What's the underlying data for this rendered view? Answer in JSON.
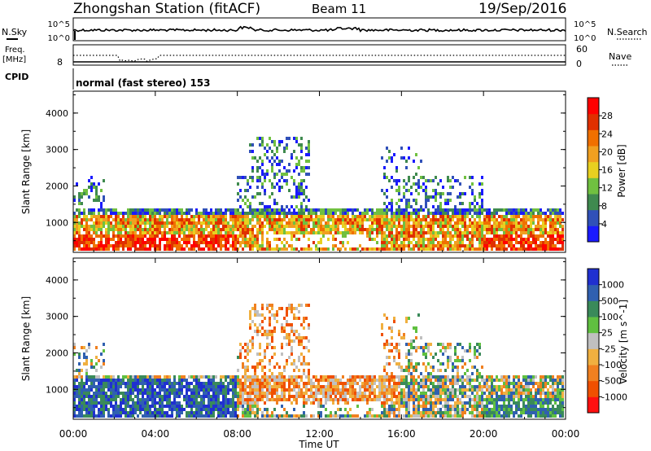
{
  "header": {
    "station": "Zhongshan Station (fitACF)",
    "beam": "Beam 11",
    "date": "19/Sep/2016"
  },
  "top_panels": {
    "nsky_label": "N.Sky",
    "nsky_ticks": [
      "10^5",
      "10^0"
    ],
    "nsearch_label": "N.Search",
    "nsearch_ticks": [
      "10^5",
      "10^0"
    ],
    "freq_label": "Freq.",
    "freq_unit": "[MHz]",
    "freq_ticks": [
      "8"
    ],
    "nave_label": "Nave",
    "nave_ticks": [
      "60",
      "0"
    ],
    "cpid_label": "CPID",
    "cpid_text": "normal (fast stereo) 153"
  },
  "chart_data": [
    {
      "type": "heatmap",
      "name": "power",
      "ylabel": "Slant Range [km]",
      "ylim": [
        180,
        4600
      ],
      "yticks": [
        "1000",
        "2000",
        "3000",
        "4000"
      ],
      "xlim": [
        0,
        24
      ],
      "xticks": [
        "00:00",
        "04:00",
        "08:00",
        "12:00",
        "16:00",
        "20:00",
        "00:00"
      ],
      "colorbar_label": "Power [dB]",
      "colorbar_ticks": [
        "4",
        "8",
        "12",
        "16",
        "20",
        "24",
        "28"
      ],
      "colorbar_range": [
        0,
        32
      ],
      "colors": [
        "#1a1aff",
        "#3050b8",
        "#3f8a4f",
        "#70c040",
        "#e8d020",
        "#f0a020",
        "#f07000",
        "#e03000",
        "#ff0000"
      ]
    },
    {
      "type": "heatmap",
      "name": "velocity",
      "ylabel": "Slant Range [km]",
      "ylim": [
        180,
        4600
      ],
      "yticks": [
        "1000",
        "2000",
        "3000",
        "4000"
      ],
      "xlim": [
        0,
        24
      ],
      "xticks": [
        "00:00",
        "04:00",
        "08:00",
        "12:00",
        "16:00",
        "20:00",
        "00:00"
      ],
      "xlabel": "Time UT",
      "colorbar_label": "Velocity [m s^-1]",
      "colorbar_ticks": [
        "1000",
        "500",
        "100",
        "25",
        "-25",
        "-100",
        "-500",
        "-1000"
      ],
      "colors": [
        "#2030d0",
        "#3060b0",
        "#3a8a5a",
        "#60c040",
        "#c0c0c0",
        "#f0b040",
        "#f08020",
        "#f05000",
        "#ff1010"
      ]
    }
  ]
}
